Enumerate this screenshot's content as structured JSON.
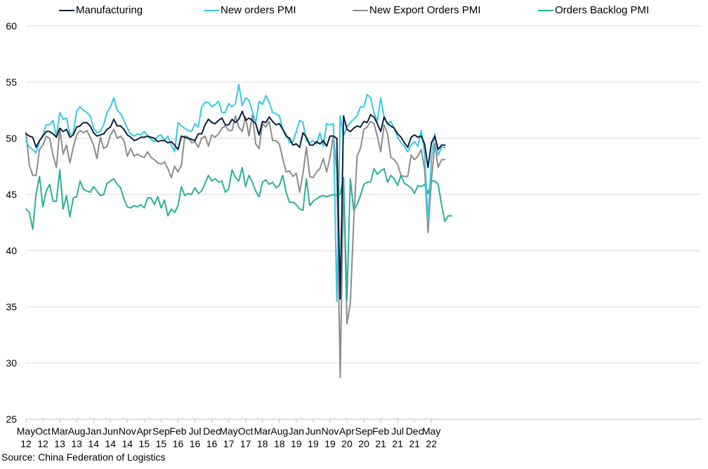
{
  "chart_data": {
    "type": "line",
    "title": "",
    "xlabel": "",
    "ylabel": "",
    "ylim": [
      25,
      60
    ],
    "yticks": [
      25,
      30,
      35,
      40,
      45,
      50,
      55,
      60
    ],
    "grid": "horizontal",
    "legend_position": "top",
    "x_start": "2012-05",
    "x_tick_labels": [
      {
        "month": "May",
        "year": "12",
        "index": 0
      },
      {
        "month": "Oct",
        "year": "12",
        "index": 5
      },
      {
        "month": "Mar",
        "year": "13",
        "index": 10
      },
      {
        "month": "Aug",
        "year": "13",
        "index": 15
      },
      {
        "month": "Jan",
        "year": "14",
        "index": 20
      },
      {
        "month": "Jun",
        "year": "14",
        "index": 25
      },
      {
        "month": "Nov",
        "year": "14",
        "index": 30
      },
      {
        "month": "Apr",
        "year": "15",
        "index": 35
      },
      {
        "month": "Sep",
        "year": "15",
        "index": 40
      },
      {
        "month": "Feb",
        "year": "16",
        "index": 45
      },
      {
        "month": "Jul",
        "year": "16",
        "index": 50
      },
      {
        "month": "Dec",
        "year": "16",
        "index": 55
      },
      {
        "month": "May",
        "year": "17",
        "index": 60
      },
      {
        "month": "Oct",
        "year": "17",
        "index": 65
      },
      {
        "month": "Mar",
        "year": "18",
        "index": 70
      },
      {
        "month": "Aug",
        "year": "18",
        "index": 75
      },
      {
        "month": "Jan",
        "year": "19",
        "index": 80
      },
      {
        "month": "Jun",
        "year": "19",
        "index": 85
      },
      {
        "month": "Nov",
        "year": "19",
        "index": 90
      },
      {
        "month": "Apr",
        "year": "20",
        "index": 95
      },
      {
        "month": "Sep",
        "year": "20",
        "index": 100
      },
      {
        "month": "Feb",
        "year": "21",
        "index": 105
      },
      {
        "month": "Jul",
        "year": "21",
        "index": 110
      },
      {
        "month": "Dec",
        "year": "21",
        "index": 115
      },
      {
        "month": "May",
        "year": "22",
        "index": 120
      }
    ],
    "series": [
      {
        "name": "Manufacturing",
        "color": "#0d1f3c",
        "values": [
          50.4,
          50.2,
          50.1,
          49.2,
          49.8,
          50.2,
          50.6,
          50.6,
          50.4,
          50.1,
          50.9,
          50.6,
          50.8,
          50.1,
          50.3,
          51.0,
          51.1,
          51.4,
          51.4,
          51.1,
          50.5,
          50.2,
          50.3,
          50.4,
          50.8,
          51.0,
          51.7,
          51.1,
          51.1,
          50.8,
          50.3,
          50.1,
          49.8,
          49.9,
          50.1,
          50.1,
          50.2,
          50.1,
          50.0,
          49.7,
          49.8,
          49.8,
          49.6,
          49.7,
          49.4,
          49.0,
          50.2,
          50.1,
          50.0,
          49.9,
          49.8,
          50.4,
          50.4,
          51.2,
          51.7,
          51.4,
          51.3,
          51.6,
          51.8,
          51.2,
          51.2,
          51.7,
          51.4,
          51.7,
          52.4,
          51.6,
          51.8,
          51.6,
          51.3,
          50.3,
          51.5,
          51.4,
          51.9,
          51.5,
          51.2,
          51.3,
          50.8,
          50.2,
          50.0,
          49.4,
          49.5,
          49.2,
          50.5,
          50.1,
          49.4,
          49.4,
          49.7,
          49.5,
          49.8,
          49.3,
          50.2,
          50.2,
          50.0,
          35.7,
          52.0,
          50.8,
          50.6,
          50.9,
          51.1,
          51.0,
          51.5,
          51.4,
          52.1,
          51.9,
          51.3,
          50.6,
          51.9,
          51.3,
          51.1,
          50.9,
          50.4,
          50.1,
          49.6,
          49.2,
          50.1,
          50.3,
          50.1,
          50.2,
          49.5,
          47.4,
          49.6,
          50.2,
          49.0,
          49.4,
          49.4
        ]
      },
      {
        "name": "New orders PMI",
        "color": "#35c8e8",
        "values": [
          49.8,
          49.2,
          49.0,
          48.7,
          49.7,
          50.3,
          51.2,
          51.2,
          51.6,
          50.1,
          52.3,
          51.7,
          51.8,
          50.3,
          50.5,
          52.4,
          52.8,
          52.5,
          52.3,
          52.0,
          50.9,
          50.5,
          50.6,
          51.2,
          52.3,
          52.8,
          53.6,
          52.5,
          52.2,
          51.6,
          50.9,
          50.4,
          50.2,
          50.4,
          50.3,
          50.6,
          50.2,
          49.9,
          49.7,
          50.2,
          50.3,
          49.8,
          50.2,
          49.4,
          48.8,
          51.4,
          51.1,
          50.9,
          50.7,
          50.6,
          51.3,
          51.0,
          52.8,
          53.2,
          53.2,
          52.8,
          53.0,
          53.3,
          52.3,
          52.3,
          53.1,
          52.8,
          53.1,
          54.8,
          52.9,
          53.6,
          53.4,
          52.4,
          51.4,
          53.3,
          53.0,
          53.8,
          53.2,
          52.3,
          52.2,
          52.0,
          50.8,
          50.4,
          49.6,
          49.7,
          50.6,
          51.6,
          51.4,
          49.8,
          49.6,
          49.8,
          49.5,
          50.5,
          49.3,
          51.3,
          51.2,
          51.3,
          35.5,
          52.0,
          50.2,
          51.0,
          51.4,
          51.7,
          52.0,
          52.8,
          52.8,
          53.9,
          53.6,
          52.3,
          51.5,
          53.6,
          51.9,
          51.3,
          51.5,
          50.9,
          50.1,
          49.6,
          49.3,
          48.8,
          49.4,
          49.7,
          49.3,
          50.7,
          48.6,
          42.6,
          48.2,
          50.4,
          48.5,
          49.2,
          49.2
        ]
      },
      {
        "name": "New Export Orders PMI",
        "color": "#8c8c8c",
        "values": [
          50.5,
          47.6,
          46.7,
          46.7,
          49.0,
          49.4,
          50.2,
          50.0,
          48.5,
          47.4,
          50.8,
          48.6,
          49.4,
          47.8,
          49.2,
          50.3,
          50.7,
          50.5,
          50.7,
          50.1,
          49.4,
          48.2,
          50.1,
          49.1,
          49.3,
          50.3,
          50.8,
          50.0,
          50.2,
          49.8,
          48.4,
          49.1,
          48.4,
          48.6,
          48.4,
          48.3,
          48.8,
          48.3,
          48.1,
          47.8,
          47.7,
          47.9,
          47.3,
          46.5,
          47.5,
          47.0,
          47.6,
          50.2,
          50.1,
          49.6,
          49.7,
          49.2,
          50.0,
          50.2,
          49.3,
          50.3,
          50.1,
          50.4,
          50.9,
          51.1,
          50.7,
          50.7,
          52.0,
          51.0,
          50.6,
          51.9,
          50.2,
          52.1,
          49.5,
          49.1,
          51.3,
          51.0,
          51.5,
          49.8,
          49.8,
          49.5,
          48.2,
          47.0,
          47.1,
          46.6,
          46.9,
          45.2,
          46.9,
          49.2,
          46.6,
          46.5,
          47.0,
          47.3,
          48.2,
          47.0,
          48.3,
          50.3,
          47.1,
          28.7,
          46.4,
          33.5,
          35.3,
          42.6,
          48.4,
          49.1,
          50.8,
          51.0,
          51.5,
          51.3,
          50.2,
          48.8,
          51.2,
          50.4,
          48.3,
          48.1,
          47.7,
          46.7,
          46.6,
          46.6,
          48.5,
          48.1,
          48.4,
          49.0,
          47.2,
          41.6,
          46.2,
          49.5,
          47.4,
          48.1,
          48.1
        ]
      },
      {
        "name": "Orders Backlog PMI",
        "color": "#2bb096",
        "values": [
          43.7,
          43.4,
          41.9,
          45.1,
          46.6,
          43.9,
          45.3,
          45.9,
          44.4,
          44.4,
          47.2,
          43.7,
          44.9,
          43.0,
          44.7,
          44.8,
          46.2,
          45.5,
          45.3,
          45.2,
          45.7,
          45.3,
          44.9,
          45.0,
          46.0,
          46.2,
          46.4,
          45.9,
          45.6,
          44.6,
          43.9,
          43.8,
          44.0,
          43.9,
          44.1,
          43.8,
          44.7,
          44.7,
          44.1,
          44.8,
          43.8,
          44.5,
          43.1,
          43.7,
          43.4,
          44.0,
          45.7,
          44.9,
          45.1,
          45.0,
          45.6,
          45.1,
          45.3,
          46.0,
          46.7,
          46.2,
          46.4,
          46.1,
          46.2,
          45.2,
          45.5,
          47.2,
          46.5,
          46.2,
          47.4,
          45.7,
          46.7,
          46.1,
          45.3,
          44.8,
          46.1,
          46.3,
          45.9,
          46.1,
          45.6,
          45.8,
          46.7,
          45.2,
          44.3,
          44.3,
          44.1,
          43.7,
          43.6,
          46.4,
          44.0,
          44.4,
          44.6,
          44.8,
          44.9,
          44.8,
          44.9,
          45.0,
          44.9,
          45.0,
          46.5,
          35.6,
          46.4,
          43.6,
          44.1,
          44.9,
          45.9,
          46.1,
          46.1,
          47.3,
          46.8,
          47.1,
          47.3,
          46.1,
          46.7,
          46.4,
          45.8,
          46.7,
          46.0,
          45.8,
          45.6,
          45.1,
          45.8,
          45.7,
          45.9,
          45.1,
          46.2,
          46.2,
          45.9,
          44.1,
          42.6,
          43.1,
          43.1
        ]
      }
    ]
  },
  "source_note": "Source: China Federation of Logistics"
}
